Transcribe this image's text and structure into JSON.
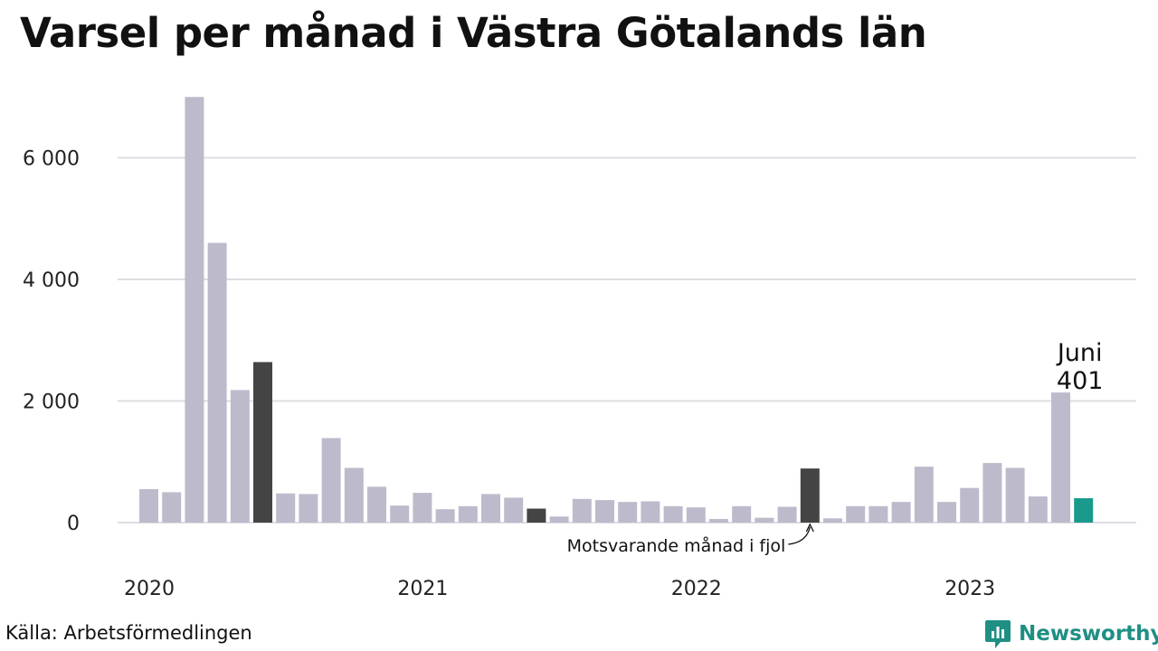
{
  "title": "Varsel per månad i Västra Götalands län",
  "source": "Källa: Arbetsförmedlingen",
  "brand": "Newsworthy",
  "colors": {
    "bar": "#bdbbcb",
    "same_month_last_year": "#444444",
    "latest": "#1a9a8c",
    "grid": "#dedde3",
    "brand": "#1f8f83"
  },
  "chart_data": {
    "type": "bar",
    "title": "Varsel per månad i Västra Götalands län",
    "ylim": [
      0,
      7000
    ],
    "y_ticks": [
      0,
      2000,
      4000,
      6000
    ],
    "y_tick_labels": [
      "0",
      "2 000",
      "4 000",
      "6 000"
    ],
    "x_ticks": [
      {
        "label": "2020",
        "index": 0
      },
      {
        "label": "2021",
        "index": 12
      },
      {
        "label": "2022",
        "index": 24
      },
      {
        "label": "2023",
        "index": 36
      }
    ],
    "grid": true,
    "categories": [
      "2020-01",
      "2020-02",
      "2020-03",
      "2020-04",
      "2020-05",
      "2020-06",
      "2020-07",
      "2020-08",
      "2020-09",
      "2020-10",
      "2020-11",
      "2020-12",
      "2021-01",
      "2021-02",
      "2021-03",
      "2021-04",
      "2021-05",
      "2021-06",
      "2021-07",
      "2021-08",
      "2021-09",
      "2021-10",
      "2021-11",
      "2021-12",
      "2022-01",
      "2022-02",
      "2022-03",
      "2022-04",
      "2022-05",
      "2022-06",
      "2022-07",
      "2022-08",
      "2022-09",
      "2022-10",
      "2022-11",
      "2022-12",
      "2023-01",
      "2023-02",
      "2023-03",
      "2023-04",
      "2023-05",
      "2023-06"
    ],
    "values": [
      550,
      500,
      7000,
      4600,
      2180,
      2640,
      480,
      470,
      1390,
      900,
      590,
      280,
      490,
      220,
      270,
      470,
      410,
      230,
      100,
      390,
      370,
      340,
      350,
      270,
      250,
      60,
      270,
      80,
      260,
      890,
      70,
      270,
      270,
      340,
      920,
      340,
      570,
      980,
      900,
      430,
      2140,
      401
    ],
    "highlight": {
      "same_month_last_year": [
        5,
        17,
        29
      ],
      "latest": 41
    },
    "annotations": [
      {
        "index": 41,
        "line1": "Juni",
        "line2": "401"
      },
      {
        "index": 29,
        "text": "Motsvarande månad i fjol"
      }
    ]
  }
}
